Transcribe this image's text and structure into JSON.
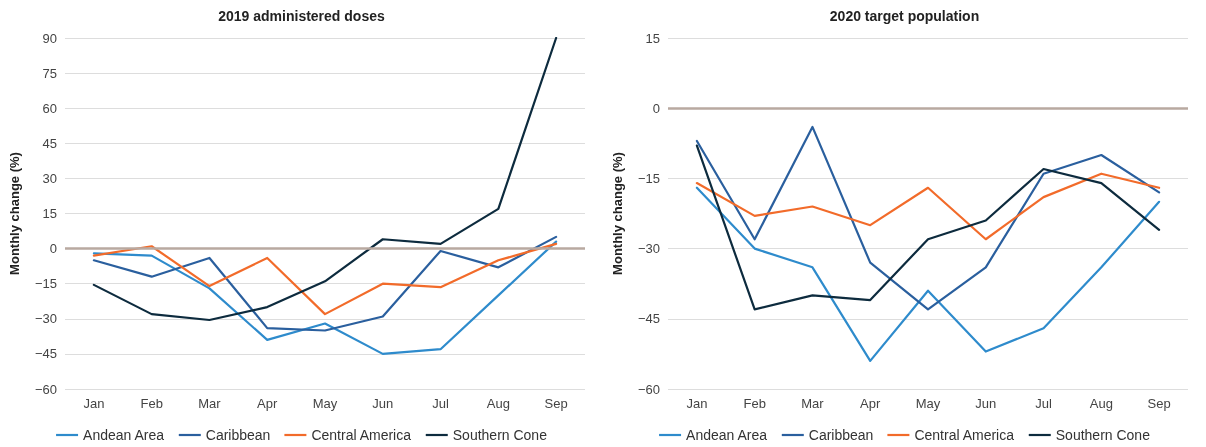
{
  "chart_data": [
    {
      "type": "line",
      "title": "2019 administered doses",
      "ylabel": "Monthly change (%)",
      "categories": [
        "Jan",
        "Feb",
        "Mar",
        "Apr",
        "May",
        "Jun",
        "Jul",
        "Aug",
        "Sep"
      ],
      "series": [
        {
          "name": "Andean Area",
          "color": "#2e8bcc",
          "values": [
            -2,
            -3,
            -17,
            -39,
            -32,
            -45,
            -43,
            -20,
            3
          ]
        },
        {
          "name": "Caribbean",
          "color": "#2a5f9e",
          "values": [
            -5,
            -12,
            -4,
            -34,
            -35,
            -29,
            -1,
            -8,
            5
          ]
        },
        {
          "name": "Central America",
          "color": "#f26b2a",
          "values": [
            -3,
            1,
            -16,
            -4,
            -28,
            -15,
            -16.5,
            -5,
            2
          ]
        },
        {
          "name": "Southern Cone",
          "color": "#0d2b3e",
          "values": [
            -15.5,
            -28,
            -30.5,
            -25,
            -14,
            4,
            2,
            17,
            90
          ]
        }
      ],
      "ylim": [
        -60,
        90
      ],
      "yticks": [
        {
          "value": -60,
          "label": "−60"
        },
        {
          "value": -45,
          "label": "−45"
        },
        {
          "value": -30,
          "label": "−30"
        },
        {
          "value": -15,
          "label": "−15"
        },
        0,
        15,
        30,
        45,
        60,
        75,
        90
      ],
      "ref_lines": [
        {
          "axis": "y",
          "value": 0,
          "color": "#b8a9a0"
        }
      ],
      "grid": "y",
      "legend": "bottom",
      "marker": "none",
      "line_style": "solid"
    },
    {
      "type": "line",
      "title": "2020 target population",
      "ylabel": "Monthly change (%)",
      "categories": [
        "Jan",
        "Feb",
        "Mar",
        "Apr",
        "May",
        "Jun",
        "Jul",
        "Aug",
        "Sep"
      ],
      "series": [
        {
          "name": "Andean Area",
          "color": "#2e8bcc",
          "values": [
            -17,
            -30,
            -34,
            -54,
            -39,
            -52,
            -47,
            -34,
            -20
          ]
        },
        {
          "name": "Caribbean",
          "color": "#2a5f9e",
          "values": [
            -7,
            -28,
            -4,
            -33,
            -43,
            -34,
            -14,
            -10,
            -18
          ]
        },
        {
          "name": "Central America",
          "color": "#f26b2a",
          "values": [
            -16,
            -23,
            -21,
            -25,
            -17,
            -28,
            -19,
            -14,
            -17
          ]
        },
        {
          "name": "Southern Cone",
          "color": "#0d2b3e",
          "values": [
            -8,
            -43,
            -40,
            -41,
            -28,
            -24,
            -13,
            -16,
            -26
          ]
        }
      ],
      "ylim": [
        -60,
        15
      ],
      "yticks": [
        {
          "value": -60,
          "label": "−60"
        },
        {
          "value": -45,
          "label": "−45"
        },
        {
          "value": -30,
          "label": "−30"
        },
        {
          "value": -15,
          "label": "−15"
        },
        0,
        15
      ],
      "ref_lines": [
        {
          "axis": "y",
          "value": 0,
          "color": "#b8a9a0"
        }
      ],
      "grid": "y",
      "legend": "bottom",
      "marker": "none",
      "line_style": "solid"
    }
  ]
}
